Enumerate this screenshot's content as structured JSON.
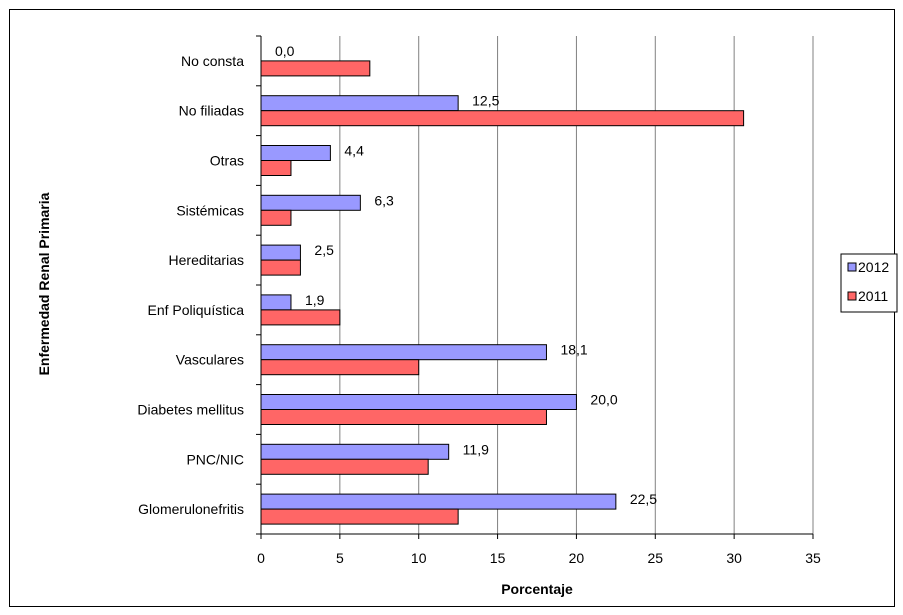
{
  "colors": {
    "s2012": "#9999ff",
    "s2011": "#ff6666",
    "grid": "#808080",
    "axis": "#000000"
  },
  "chart_data": {
    "type": "bar",
    "orientation": "horizontal",
    "title": "",
    "xlabel": "Porcentaje",
    "ylabel": "Enfermedad Renal Primaria",
    "xlim": [
      0,
      35
    ],
    "xticks": [
      0,
      5,
      10,
      15,
      20,
      25,
      30,
      35
    ],
    "grid": true,
    "legend_position": "right",
    "categories": [
      "No consta",
      "No filiadas",
      "Otras",
      "Sistémicas",
      "Hereditarias",
      "Enf Poliquística",
      "Vasculares",
      "Diabetes mellitus",
      "PNC/NIC",
      "Glomerulonefritis"
    ],
    "series": [
      {
        "name": "2012",
        "values": [
          0.0,
          12.5,
          4.4,
          6.3,
          2.5,
          1.9,
          18.1,
          20.0,
          11.9,
          22.5
        ],
        "labels": [
          "0,0",
          "12,5",
          "4,4",
          "6,3",
          "2,5",
          "1,9",
          "18,1",
          "20,0",
          "11,9",
          "22,5"
        ]
      },
      {
        "name": "2011",
        "values": [
          6.9,
          30.6,
          1.9,
          1.9,
          2.5,
          5.0,
          10.0,
          18.1,
          10.6,
          12.5
        ]
      }
    ]
  }
}
